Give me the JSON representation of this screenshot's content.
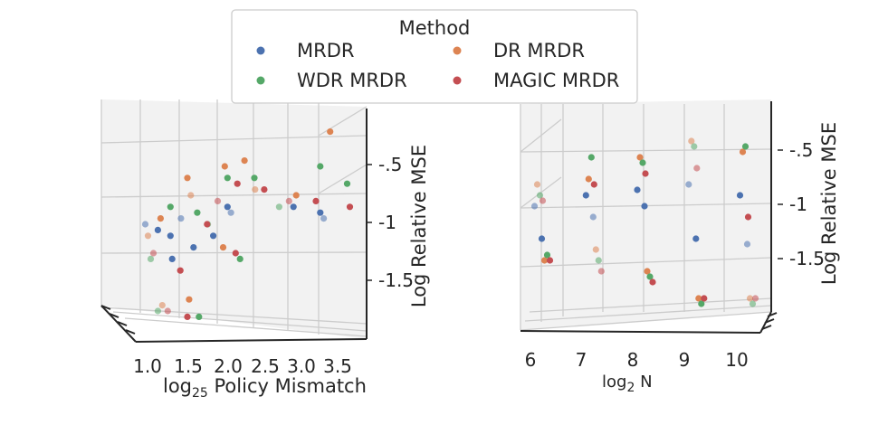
{
  "legend": {
    "title": "Method",
    "entries": [
      {
        "label": "MRDR",
        "color": "#4c72b0"
      },
      {
        "label": "DR MRDR",
        "color": "#dd8452"
      },
      {
        "label": "WDR MRDR",
        "color": "#55a868"
      },
      {
        "label": "MAGIC MRDR",
        "color": "#c44e52"
      }
    ]
  },
  "chart_data": [
    {
      "type": "scatter",
      "title": "",
      "xlabel_base": "log",
      "xlabel_sub": "25",
      "xlabel_rest": " Policy Mismatch",
      "zlabel": "Log Relative MSE",
      "x_ticks": [
        "1.0",
        "1.5",
        "2.0",
        "2.5",
        "3.0",
        "3.5"
      ],
      "z_ticks": [
        {
          "label": "-.5",
          "value": -0.5
        },
        {
          "label": "-1",
          "value": -1
        },
        {
          "label": "-1.5",
          "value": -1.5
        }
      ],
      "series": [
        {
          "name": "MRDR",
          "points": [
            [
              1.0,
              -1.0
            ],
            [
              1.1,
              -1.05
            ],
            [
              1.2,
              -1.1
            ],
            [
              1.5,
              -0.95
            ],
            [
              1.6,
              -1.2
            ],
            [
              2.0,
              -0.85
            ],
            [
              2.2,
              -0.9
            ],
            [
              3.0,
              -0.85
            ],
            [
              3.3,
              -0.9
            ],
            [
              3.5,
              -0.95
            ],
            [
              1.3,
              -1.3
            ],
            [
              1.8,
              -1.1
            ]
          ]
        },
        {
          "name": "DR MRDR",
          "points": [
            [
              1.0,
              -1.1
            ],
            [
              1.1,
              -0.95
            ],
            [
              1.4,
              -0.6
            ],
            [
              1.6,
              -0.75
            ],
            [
              2.0,
              -0.5
            ],
            [
              2.2,
              -0.45
            ],
            [
              2.5,
              -0.7
            ],
            [
              3.0,
              -0.75
            ],
            [
              3.4,
              -0.2
            ],
            [
              1.2,
              -1.7
            ],
            [
              1.5,
              -1.65
            ],
            [
              1.9,
              -1.2
            ]
          ]
        },
        {
          "name": "WDR MRDR",
          "points": [
            [
              1.0,
              -1.3
            ],
            [
              1.2,
              -0.85
            ],
            [
              1.5,
              -0.9
            ],
            [
              1.8,
              -1.0
            ],
            [
              2.0,
              -0.6
            ],
            [
              2.3,
              -0.6
            ],
            [
              2.8,
              -0.85
            ],
            [
              3.3,
              -0.5
            ],
            [
              3.6,
              -0.65
            ],
            [
              1.1,
              -1.75
            ],
            [
              1.6,
              -1.8
            ],
            [
              2.1,
              -1.3
            ]
          ]
        },
        {
          "name": "MAGIC MRDR",
          "points": [
            [
              1.0,
              -1.25
            ],
            [
              1.3,
              -1.4
            ],
            [
              1.6,
              -1.0
            ],
            [
              1.9,
              -0.8
            ],
            [
              2.1,
              -0.65
            ],
            [
              2.4,
              -0.7
            ],
            [
              2.9,
              -0.8
            ],
            [
              3.2,
              -0.8
            ],
            [
              3.6,
              -0.85
            ],
            [
              1.2,
              -1.75
            ],
            [
              1.4,
              -1.8
            ],
            [
              2.0,
              -1.25
            ]
          ]
        }
      ]
    },
    {
      "type": "scatter",
      "title": "",
      "xlabel_base": "log",
      "xlabel_sub": "2",
      "xlabel_rest": " N",
      "zlabel": "Log Relative MSE",
      "x_ticks": [
        "6",
        "7",
        "8",
        "9",
        "10"
      ],
      "z_ticks": [
        {
          "label": "-.5",
          "value": -0.5
        },
        {
          "label": "-1",
          "value": -1
        },
        {
          "label": "-1.5",
          "value": -1.5
        }
      ],
      "series": [
        {
          "name": "MRDR",
          "points": [
            [
              6,
              -1.0
            ],
            [
              6,
              -1.3
            ],
            [
              7,
              -0.9
            ],
            [
              7,
              -1.1
            ],
            [
              8,
              -0.85
            ],
            [
              8,
              -1.0
            ],
            [
              9,
              -0.8
            ],
            [
              9,
              -1.3
            ],
            [
              10,
              -0.9
            ],
            [
              10,
              -1.35
            ]
          ]
        },
        {
          "name": "DR MRDR",
          "points": [
            [
              6,
              -0.8
            ],
            [
              6,
              -1.5
            ],
            [
              7,
              -0.75
            ],
            [
              7,
              -1.4
            ],
            [
              8,
              -0.55
            ],
            [
              8,
              -1.6
            ],
            [
              9,
              -0.4
            ],
            [
              9,
              -1.85
            ],
            [
              10,
              -0.5
            ],
            [
              10,
              -1.85
            ]
          ]
        },
        {
          "name": "WDR MRDR",
          "points": [
            [
              6,
              -0.9
            ],
            [
              6,
              -1.45
            ],
            [
              7,
              -0.55
            ],
            [
              7,
              -1.5
            ],
            [
              8,
              -0.6
            ],
            [
              8,
              -1.65
            ],
            [
              9,
              -0.45
            ],
            [
              9,
              -1.9
            ],
            [
              10,
              -0.45
            ],
            [
              10,
              -1.9
            ]
          ]
        },
        {
          "name": "MAGIC MRDR",
          "points": [
            [
              6,
              -0.95
            ],
            [
              6,
              -1.5
            ],
            [
              7,
              -0.8
            ],
            [
              7,
              -1.6
            ],
            [
              8,
              -0.7
            ],
            [
              8,
              -1.7
            ],
            [
              9,
              -0.65
            ],
            [
              9,
              -1.85
            ],
            [
              10,
              -1.1
            ],
            [
              10,
              -1.85
            ]
          ]
        }
      ]
    }
  ]
}
